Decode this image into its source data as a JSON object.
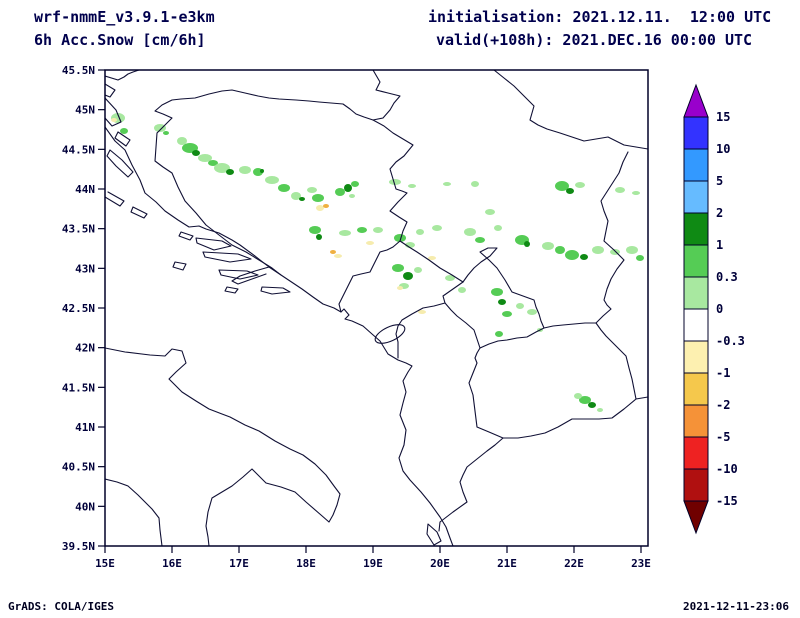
{
  "header": {
    "model": "wrf-nmmE_v3.9.1-e3km",
    "variable": "6h Acc.Snow [cm/6h]",
    "init_label": "initialisation: 2021.12.11.  12:00 UTC",
    "valid_label": "valid(+108h): 2021.DEC.16 00:00 UTC"
  },
  "footer": {
    "credit": "GrADS: COLA/IGES",
    "timestamp": "2021-12-11-23:06"
  },
  "axes": {
    "y_ticks": [
      "45.5N",
      "45N",
      "44.5N",
      "44N",
      "43.5N",
      "43N",
      "42.5N",
      "42N",
      "41.5N",
      "41N",
      "40.5N",
      "40N",
      "39.5N"
    ],
    "x_ticks": [
      "15E",
      "16E",
      "17E",
      "18E",
      "19E",
      "20E",
      "21E",
      "22E",
      "23E"
    ]
  },
  "colorbar": {
    "labels": [
      "15",
      "10",
      "5",
      "2",
      "1",
      "0.3",
      "0",
      "-0.3",
      "-1",
      "-2",
      "-5",
      "-10",
      "-15"
    ],
    "segment_colors": [
      "#3333ff",
      "#3399ff",
      "#66bbff",
      "#0f8a14",
      "#55cc55",
      "#a8e8a0",
      "#ffffff",
      "#fdf0b0",
      "#f5c84c",
      "#f59238",
      "#ee2222",
      "#b01010"
    ],
    "arrow_top_color": "#9900cc",
    "arrow_bottom_color": "#700000"
  },
  "map": {
    "line_color": "#101035",
    "patch_colors": {
      "g1": "#a8e8a0",
      "g2": "#55cc55",
      "g3": "#0f8a14",
      "y1": "#f6ecae",
      "y2": "#f0b040"
    },
    "snow_patches": [
      [
        118,
        118,
        7,
        5,
        "g1"
      ],
      [
        114,
        120,
        3,
        2,
        "y1"
      ],
      [
        124,
        131,
        4,
        3,
        "g2"
      ],
      [
        160,
        128,
        6,
        4,
        "g1"
      ],
      [
        166,
        133,
        3,
        2,
        "g2"
      ],
      [
        182,
        141,
        5,
        4,
        "g1"
      ],
      [
        190,
        148,
        8,
        5,
        "g2"
      ],
      [
        196,
        153,
        4,
        3,
        "g3"
      ],
      [
        205,
        158,
        7,
        4,
        "g1"
      ],
      [
        213,
        163,
        5,
        3,
        "g2"
      ],
      [
        222,
        168,
        8,
        5,
        "g1"
      ],
      [
        230,
        172,
        4,
        3,
        "g3"
      ],
      [
        245,
        170,
        6,
        4,
        "g1"
      ],
      [
        258,
        172,
        5,
        4,
        "g2"
      ],
      [
        262,
        171,
        2,
        2,
        "g3"
      ],
      [
        272,
        180,
        7,
        4,
        "g1"
      ],
      [
        284,
        188,
        6,
        4,
        "g2"
      ],
      [
        296,
        196,
        5,
        4,
        "g1"
      ],
      [
        302,
        199,
        3,
        2,
        "g3"
      ],
      [
        312,
        190,
        5,
        3,
        "g1"
      ],
      [
        320,
        208,
        4,
        3,
        "y1"
      ],
      [
        326,
        206,
        3,
        2,
        "y2"
      ],
      [
        318,
        198,
        6,
        4,
        "g2"
      ],
      [
        340,
        192,
        5,
        4,
        "g2"
      ],
      [
        348,
        188,
        4,
        4,
        "g3"
      ],
      [
        355,
        184,
        4,
        3,
        "g2"
      ],
      [
        352,
        196,
        3,
        2,
        "g1"
      ],
      [
        395,
        182,
        6,
        3,
        "g1"
      ],
      [
        412,
        186,
        4,
        2,
        "g1"
      ],
      [
        447,
        184,
        4,
        2,
        "g1"
      ],
      [
        475,
        184,
        4,
        3,
        "g1"
      ],
      [
        490,
        212,
        5,
        3,
        "g1"
      ],
      [
        562,
        186,
        7,
        5,
        "g2"
      ],
      [
        570,
        191,
        4,
        3,
        "g3"
      ],
      [
        580,
        185,
        5,
        3,
        "g1"
      ],
      [
        620,
        190,
        5,
        3,
        "g1"
      ],
      [
        636,
        193,
        4,
        2,
        "g1"
      ],
      [
        315,
        230,
        6,
        4,
        "g2"
      ],
      [
        319,
        237,
        3,
        3,
        "g3"
      ],
      [
        345,
        233,
        6,
        3,
        "g1"
      ],
      [
        362,
        230,
        5,
        3,
        "g2"
      ],
      [
        370,
        243,
        4,
        2,
        "y1"
      ],
      [
        378,
        230,
        5,
        3,
        "g1"
      ],
      [
        400,
        238,
        6,
        4,
        "g2"
      ],
      [
        410,
        245,
        5,
        3,
        "g1"
      ],
      [
        420,
        232,
        4,
        3,
        "g1"
      ],
      [
        437,
        228,
        5,
        3,
        "g1"
      ],
      [
        470,
        232,
        6,
        4,
        "g1"
      ],
      [
        480,
        240,
        5,
        3,
        "g2"
      ],
      [
        498,
        228,
        4,
        3,
        "g1"
      ],
      [
        522,
        240,
        7,
        5,
        "g2"
      ],
      [
        527,
        244,
        3,
        3,
        "g3"
      ],
      [
        548,
        246,
        6,
        4,
        "g1"
      ],
      [
        560,
        250,
        5,
        4,
        "g2"
      ],
      [
        572,
        255,
        7,
        5,
        "g2"
      ],
      [
        584,
        257,
        4,
        3,
        "g3"
      ],
      [
        598,
        250,
        6,
        4,
        "g1"
      ],
      [
        615,
        252,
        5,
        3,
        "g1"
      ],
      [
        632,
        250,
        6,
        4,
        "g1"
      ],
      [
        640,
        258,
        4,
        3,
        "g2"
      ],
      [
        338,
        256,
        4,
        2,
        "y1"
      ],
      [
        333,
        252,
        3,
        2,
        "y2"
      ],
      [
        432,
        258,
        4,
        2,
        "y1"
      ],
      [
        398,
        268,
        6,
        4,
        "g2"
      ],
      [
        408,
        276,
        5,
        4,
        "g3"
      ],
      [
        404,
        286,
        5,
        3,
        "g1"
      ],
      [
        400,
        288,
        3,
        2,
        "y1"
      ],
      [
        418,
        270,
        4,
        3,
        "g1"
      ],
      [
        450,
        278,
        5,
        3,
        "g1"
      ],
      [
        462,
        290,
        4,
        3,
        "g1"
      ],
      [
        497,
        292,
        6,
        4,
        "g2"
      ],
      [
        502,
        302,
        4,
        3,
        "g3"
      ],
      [
        507,
        314,
        5,
        3,
        "g2"
      ],
      [
        520,
        306,
        4,
        3,
        "g1"
      ],
      [
        532,
        312,
        5,
        3,
        "g1"
      ],
      [
        422,
        312,
        4,
        2,
        "y1"
      ],
      [
        499,
        334,
        4,
        3,
        "g2"
      ],
      [
        540,
        330,
        3,
        2,
        "g1"
      ],
      [
        585,
        400,
        6,
        4,
        "g2"
      ],
      [
        592,
        405,
        4,
        3,
        "g3"
      ],
      [
        578,
        396,
        4,
        3,
        "g1"
      ],
      [
        600,
        410,
        3,
        2,
        "g1"
      ]
    ]
  }
}
